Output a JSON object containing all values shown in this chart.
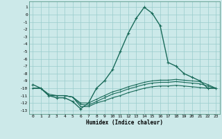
{
  "xlabel": "Humidex (Indice chaleur)",
  "bg_color": "#cce9e9",
  "grid_color": "#99cccc",
  "line_color": "#1a6b5a",
  "xlim": [
    -0.5,
    23.5
  ],
  "ylim": [
    -13.5,
    1.8
  ],
  "yticks": [
    1,
    0,
    -1,
    -2,
    -3,
    -4,
    -5,
    -6,
    -7,
    -8,
    -9,
    -10,
    -11,
    -12,
    -13
  ],
  "xticks": [
    0,
    1,
    2,
    3,
    4,
    5,
    6,
    7,
    8,
    9,
    10,
    11,
    12,
    13,
    14,
    15,
    16,
    17,
    18,
    19,
    20,
    21,
    22,
    23
  ],
  "main_x": [
    0,
    1,
    2,
    3,
    4,
    5,
    6,
    7,
    8,
    9,
    10,
    11,
    12,
    13,
    14,
    15,
    16,
    17,
    18,
    19,
    20,
    21,
    22,
    23
  ],
  "main_y": [
    -9.5,
    -10.0,
    -11.0,
    -11.3,
    -11.3,
    -11.8,
    -12.8,
    -12.0,
    -10.0,
    -9.0,
    -7.5,
    -5.0,
    -2.5,
    -0.5,
    1.0,
    0.2,
    -1.5,
    -6.5,
    -7.0,
    -8.0,
    -8.5,
    -9.0,
    -10.0,
    -10.0
  ],
  "flat1_x": [
    0,
    1,
    2,
    3,
    4,
    5,
    6,
    7,
    8,
    9,
    10,
    11,
    12,
    13,
    14,
    15,
    16,
    17,
    18,
    19,
    20,
    21,
    22,
    23
  ],
  "flat1_y": [
    -10.0,
    -10.0,
    -10.8,
    -11.0,
    -11.0,
    -11.2,
    -12.0,
    -12.0,
    -11.5,
    -11.0,
    -10.5,
    -10.2,
    -9.8,
    -9.5,
    -9.2,
    -9.0,
    -8.9,
    -8.9,
    -8.8,
    -8.9,
    -9.0,
    -9.1,
    -9.5,
    -10.0
  ],
  "flat2_x": [
    0,
    1,
    2,
    3,
    4,
    5,
    6,
    7,
    8,
    9,
    10,
    11,
    12,
    13,
    14,
    15,
    16,
    17,
    18,
    19,
    20,
    21,
    22,
    23
  ],
  "flat2_y": [
    -10.0,
    -10.0,
    -11.0,
    -11.0,
    -11.0,
    -11.2,
    -12.2,
    -12.3,
    -11.8,
    -11.3,
    -10.8,
    -10.5,
    -10.1,
    -9.8,
    -9.5,
    -9.3,
    -9.2,
    -9.2,
    -9.1,
    -9.2,
    -9.3,
    -9.4,
    -9.7,
    -10.0
  ],
  "flat3_x": [
    0,
    1,
    2,
    3,
    4,
    5,
    6,
    7,
    8,
    9,
    10,
    11,
    12,
    13,
    14,
    15,
    16,
    17,
    18,
    19,
    20,
    21,
    22,
    23
  ],
  "flat3_y": [
    -10.0,
    -10.0,
    -11.0,
    -11.0,
    -11.0,
    -11.2,
    -12.5,
    -12.5,
    -12.0,
    -11.7,
    -11.3,
    -11.0,
    -10.6,
    -10.3,
    -10.0,
    -9.8,
    -9.7,
    -9.7,
    -9.6,
    -9.7,
    -9.8,
    -9.9,
    -10.0,
    -10.0
  ]
}
